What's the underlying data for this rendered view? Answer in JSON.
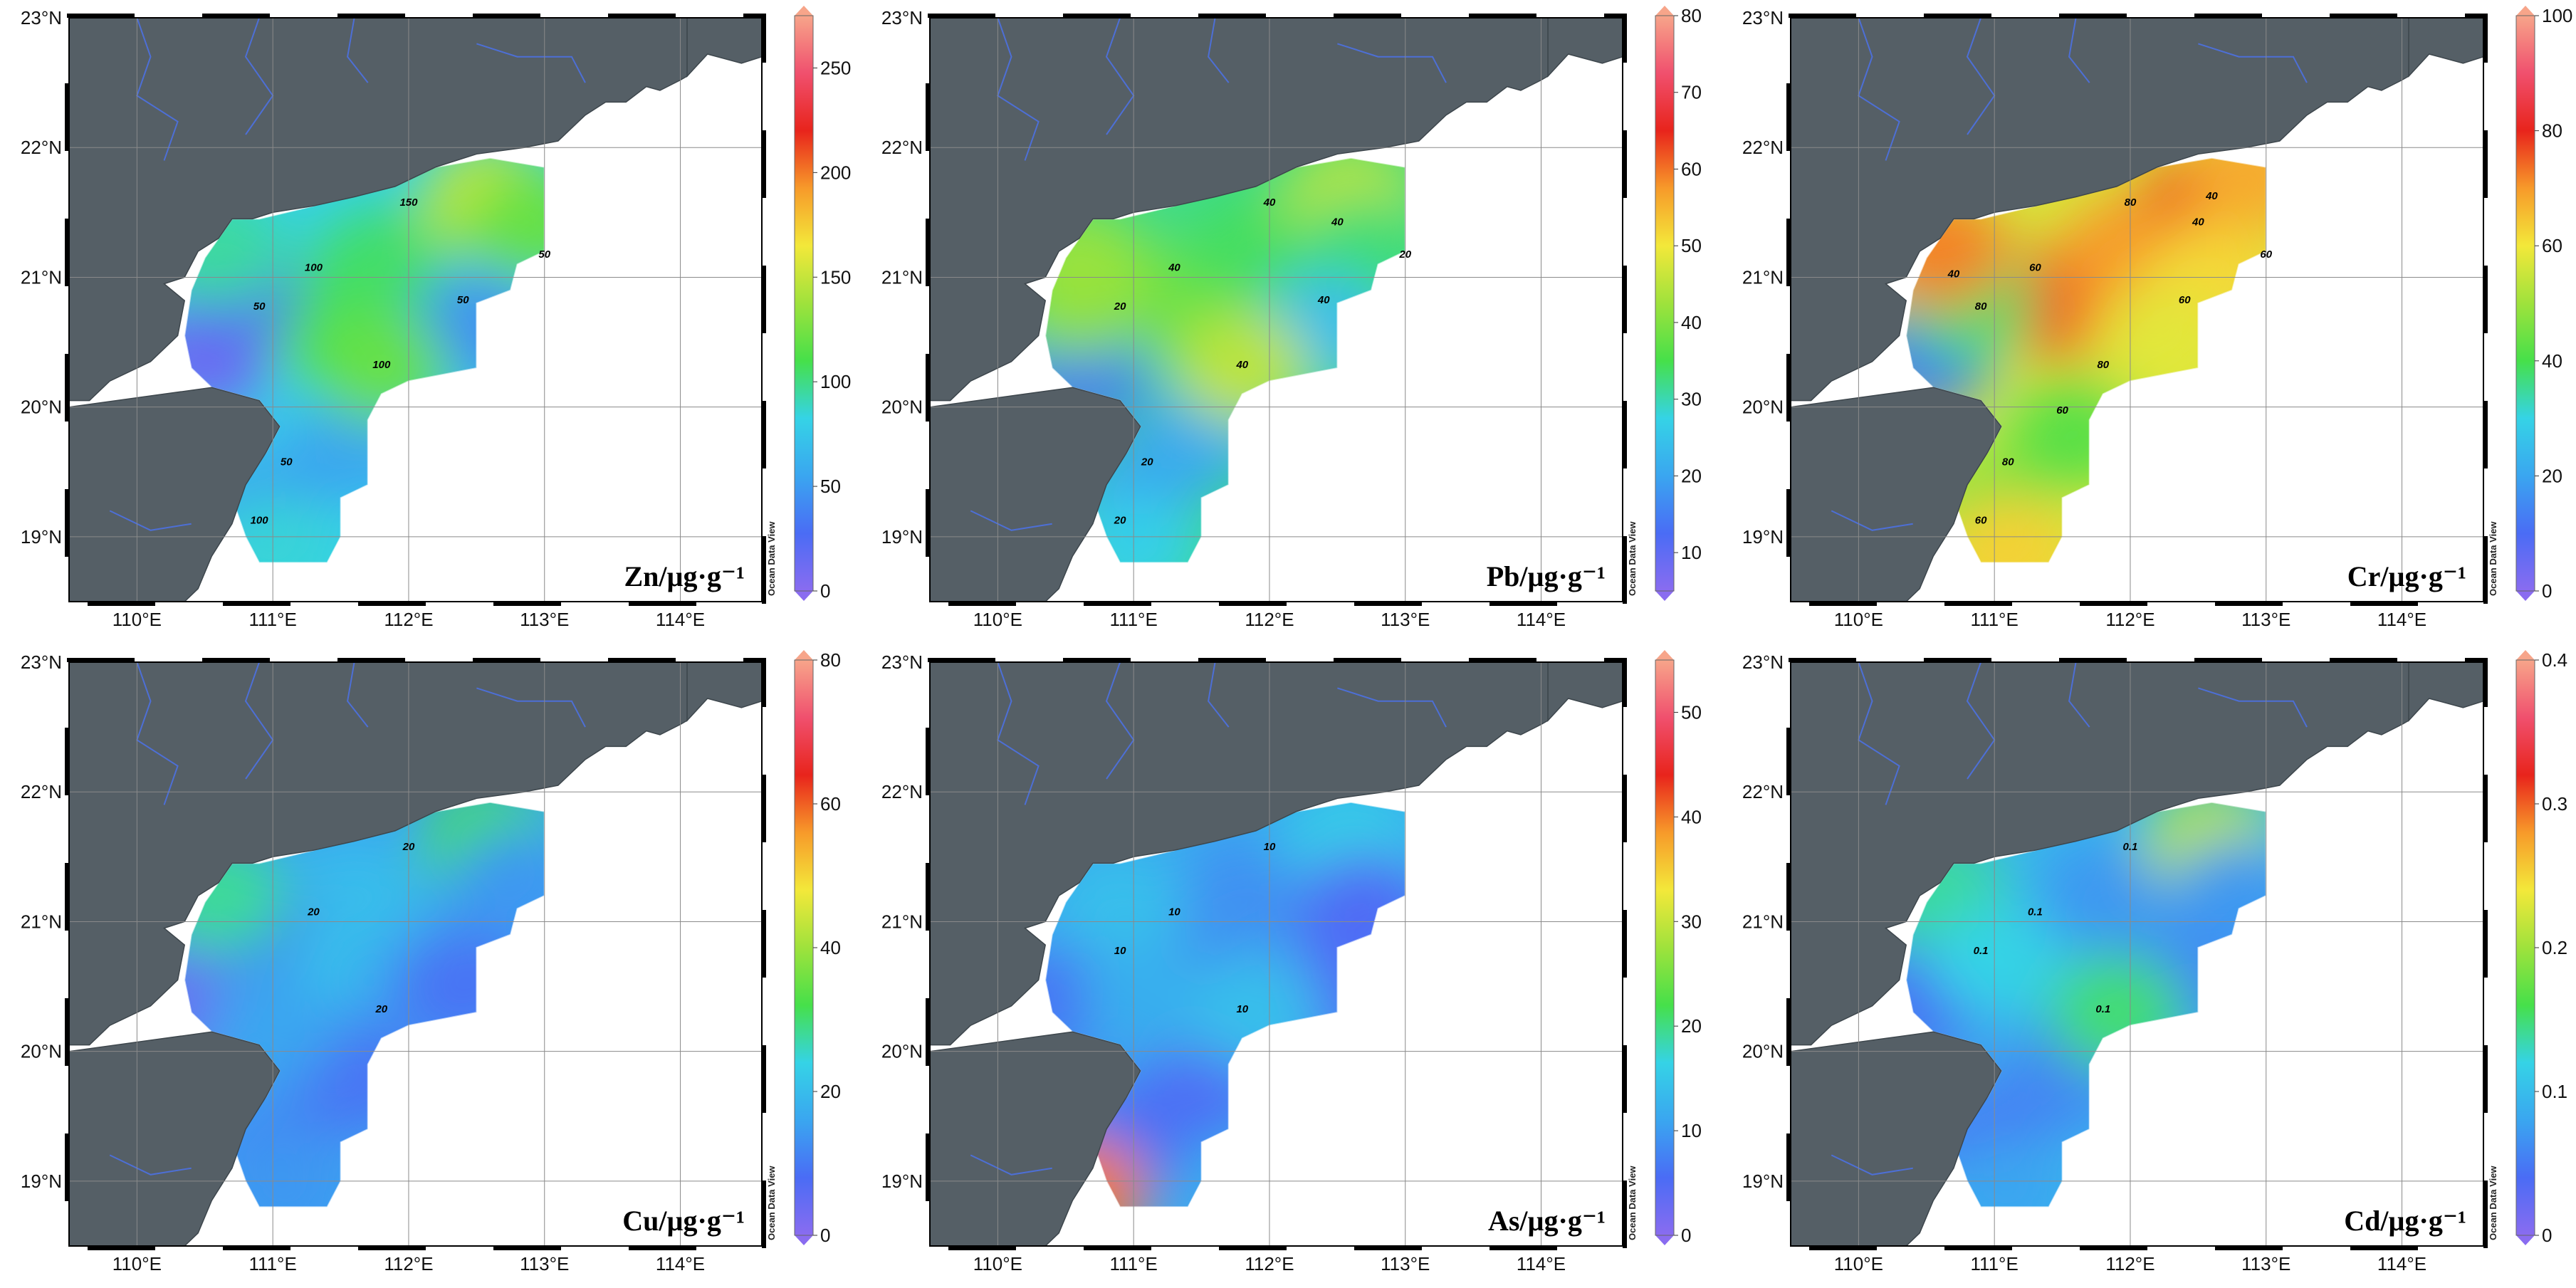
{
  "lat_labels": [
    "23°N",
    "22°N",
    "21°N",
    "20°N",
    "19°N"
  ],
  "lon_labels": [
    "110°E",
    "111°E",
    "112°E",
    "113°E",
    "114°E"
  ],
  "watermark": "Ocean Data View",
  "colors": {
    "land": "#555f66",
    "river": "#4d6fd6",
    "grid": "#8a8a8a",
    "colorbar": [
      "#8a6cf0",
      "#4a6cf5",
      "#3aa6f0",
      "#35d3e6",
      "#46e04a",
      "#9fe23c",
      "#f3e83a",
      "#f79a2a",
      "#e8241c",
      "#f0506e",
      "#f7a58a"
    ]
  },
  "panels": [
    {
      "id": "zn",
      "title": "Zn/µg·g⁻¹",
      "colorbar_ticks": [
        "250",
        "200",
        "150",
        "100",
        "50",
        "0"
      ],
      "vmin": 0,
      "vmax": 275,
      "contour_labels": [
        "150",
        "100",
        "100",
        "50",
        "50",
        "50",
        "50",
        "100"
      ],
      "blobs": [
        {
          "lon": 111.3,
          "lat": 20.7,
          "value": 110
        },
        {
          "lon": 111.8,
          "lat": 21.1,
          "value": 105
        },
        {
          "lon": 112.6,
          "lat": 21.6,
          "value": 150
        },
        {
          "lon": 112.9,
          "lat": 21.4,
          "value": 120
        },
        {
          "lon": 112.5,
          "lat": 20.6,
          "value": 45
        },
        {
          "lon": 111.6,
          "lat": 19.7,
          "value": 55
        },
        {
          "lon": 110.9,
          "lat": 19.2,
          "value": 50
        },
        {
          "lon": 111.0,
          "lat": 18.9,
          "value": 85
        },
        {
          "lon": 110.5,
          "lat": 20.4,
          "value": 12
        },
        {
          "lon": 110.7,
          "lat": 20.9,
          "value": 25
        },
        {
          "lon": 111.8,
          "lat": 20.3,
          "value": 120
        },
        {
          "lon": 110.6,
          "lat": 21.2,
          "value": 95
        }
      ]
    },
    {
      "id": "pb",
      "title": "Pb/µg·g⁻¹",
      "colorbar_ticks": [
        "80",
        "70",
        "60",
        "50",
        "40",
        "30",
        "20",
        "10"
      ],
      "vmin": 5,
      "vmax": 80,
      "contour_labels": [
        "40",
        "40",
        "40",
        "20",
        "40",
        "20",
        "20",
        "20",
        "40"
      ],
      "blobs": [
        {
          "lon": 111.3,
          "lat": 20.8,
          "value": 38
        },
        {
          "lon": 111.9,
          "lat": 21.2,
          "value": 34
        },
        {
          "lon": 112.6,
          "lat": 21.6,
          "value": 45
        },
        {
          "lon": 112.7,
          "lat": 21.2,
          "value": 33
        },
        {
          "lon": 112.4,
          "lat": 20.6,
          "value": 24
        },
        {
          "lon": 111.5,
          "lat": 19.8,
          "value": 21
        },
        {
          "lon": 111.0,
          "lat": 19.3,
          "value": 20
        },
        {
          "lon": 111.0,
          "lat": 18.9,
          "value": 27
        },
        {
          "lon": 110.6,
          "lat": 20.3,
          "value": 14
        },
        {
          "lon": 110.6,
          "lat": 20.8,
          "value": 40
        },
        {
          "lon": 111.8,
          "lat": 20.3,
          "value": 45
        },
        {
          "lon": 110.6,
          "lat": 21.1,
          "value": 42
        }
      ]
    },
    {
      "id": "cr",
      "title": "Cr/µg·g⁻¹",
      "colorbar_ticks": [
        "100",
        "80",
        "60",
        "40",
        "20",
        "0"
      ],
      "vmin": 0,
      "vmax": 100,
      "contour_labels": [
        "80",
        "60",
        "80",
        "80",
        "60",
        "60",
        "80",
        "60",
        "40",
        "40",
        "40",
        "60"
      ],
      "blobs": [
        {
          "lon": 111.5,
          "lat": 20.8,
          "value": 75
        },
        {
          "lon": 112.0,
          "lat": 21.2,
          "value": 70
        },
        {
          "lon": 112.6,
          "lat": 21.6,
          "value": 76
        },
        {
          "lon": 112.6,
          "lat": 21.0,
          "value": 62
        },
        {
          "lon": 112.2,
          "lat": 20.5,
          "value": 58
        },
        {
          "lon": 111.6,
          "lat": 19.8,
          "value": 42
        },
        {
          "lon": 111.0,
          "lat": 19.2,
          "value": 44
        },
        {
          "lon": 111.1,
          "lat": 18.9,
          "value": 63
        },
        {
          "lon": 110.5,
          "lat": 20.4,
          "value": 12
        },
        {
          "lon": 110.8,
          "lat": 20.8,
          "value": 38
        },
        {
          "lon": 110.6,
          "lat": 21.2,
          "value": 72
        },
        {
          "lon": 112.9,
          "lat": 21.8,
          "value": 68
        }
      ]
    },
    {
      "id": "cu",
      "title": "Cu/µg·g⁻¹",
      "colorbar_ticks": [
        "80",
        "60",
        "40",
        "20",
        "0"
      ],
      "vmin": 0,
      "vmax": 80,
      "contour_labels": [
        "20",
        "20",
        "20"
      ],
      "blobs": [
        {
          "lon": 111.1,
          "lat": 20.6,
          "value": 22
        },
        {
          "lon": 111.6,
          "lat": 21.2,
          "value": 20
        },
        {
          "lon": 112.6,
          "lat": 21.6,
          "value": 32
        },
        {
          "lon": 112.8,
          "lat": 21.3,
          "value": 14
        },
        {
          "lon": 112.4,
          "lat": 20.5,
          "value": 9
        },
        {
          "lon": 111.6,
          "lat": 19.8,
          "value": 9
        },
        {
          "lon": 111.0,
          "lat": 19.2,
          "value": 12
        },
        {
          "lon": 111.1,
          "lat": 18.9,
          "value": 14
        },
        {
          "lon": 110.5,
          "lat": 20.4,
          "value": 4
        },
        {
          "lon": 110.8,
          "lat": 21.0,
          "value": 12
        },
        {
          "lon": 110.6,
          "lat": 21.2,
          "value": 28
        },
        {
          "lon": 111.0,
          "lat": 20.2,
          "value": 16
        }
      ]
    },
    {
      "id": "as",
      "title": "As/µg·g⁻¹",
      "colorbar_ticks": [
        "50",
        "40",
        "30",
        "20",
        "10",
        "0"
      ],
      "vmin": 0,
      "vmax": 55,
      "contour_labels": [
        "10",
        "10",
        "10",
        "10"
      ],
      "blobs": [
        {
          "lon": 111.2,
          "lat": 20.7,
          "value": 8
        },
        {
          "lon": 111.8,
          "lat": 21.2,
          "value": 9
        },
        {
          "lon": 112.6,
          "lat": 21.6,
          "value": 16
        },
        {
          "lon": 112.7,
          "lat": 21.1,
          "value": 5
        },
        {
          "lon": 112.4,
          "lat": 20.4,
          "value": 5
        },
        {
          "lon": 111.5,
          "lat": 19.8,
          "value": 5
        },
        {
          "lon": 110.9,
          "lat": 19.3,
          "value": 6
        },
        {
          "lon": 110.6,
          "lat": 18.9,
          "value": 40
        },
        {
          "lon": 110.5,
          "lat": 20.4,
          "value": 6
        },
        {
          "lon": 110.9,
          "lat": 21.1,
          "value": 14
        },
        {
          "lon": 111.1,
          "lat": 20.4,
          "value": 12
        },
        {
          "lon": 111.9,
          "lat": 20.3,
          "value": 14
        }
      ]
    },
    {
      "id": "cd",
      "title": "Cd/µg·g⁻¹",
      "colorbar_ticks": [
        "0.4",
        "0.3",
        "0.2",
        "0.1",
        "0"
      ],
      "vmin": 0,
      "vmax": 0.4,
      "contour_labels": [
        "0.1",
        "0.1",
        "0.1",
        "0.1"
      ],
      "blobs": [
        {
          "lon": 111.1,
          "lat": 20.6,
          "value": 0.09
        },
        {
          "lon": 111.8,
          "lat": 21.2,
          "value": 0.07
        },
        {
          "lon": 112.6,
          "lat": 21.6,
          "value": 0.21
        },
        {
          "lon": 112.8,
          "lat": 21.2,
          "value": 0.07
        },
        {
          "lon": 112.4,
          "lat": 20.5,
          "value": 0.06
        },
        {
          "lon": 111.5,
          "lat": 19.8,
          "value": 0.06
        },
        {
          "lon": 110.9,
          "lat": 19.3,
          "value": 0.05
        },
        {
          "lon": 111.1,
          "lat": 18.9,
          "value": 0.08
        },
        {
          "lon": 110.5,
          "lat": 20.4,
          "value": 0.04
        },
        {
          "lon": 110.6,
          "lat": 21.2,
          "value": 0.14
        },
        {
          "lon": 111.9,
          "lat": 20.3,
          "value": 0.15
        },
        {
          "lon": 111.0,
          "lat": 20.7,
          "value": 0.12
        }
      ]
    }
  ]
}
